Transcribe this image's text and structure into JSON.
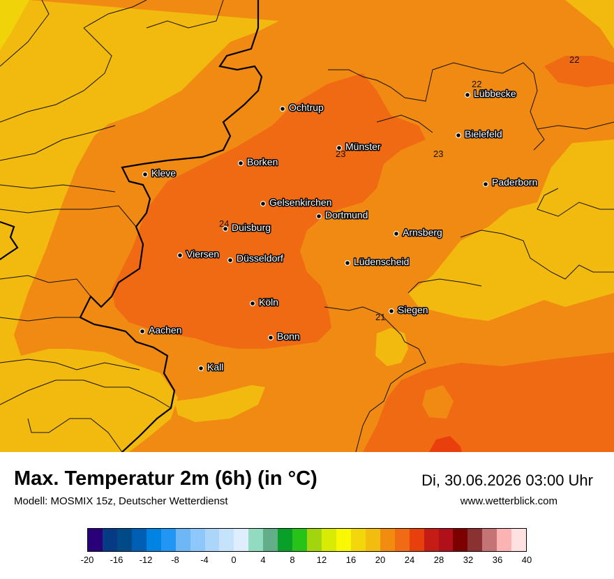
{
  "header": {
    "title": "Max. Temperatur 2m (6h) (in °C)",
    "model": "Modell: MOSMIX 15z, Deutscher Wetterdienst",
    "datetime": "Di, 30.06.2026 03:00 Uhr",
    "website": "www.wetterblick.com"
  },
  "map": {
    "colors": {
      "t16": "#f1d30a",
      "t18": "#f2ba0e",
      "t20": "#f18a13",
      "t22": "#f06a13",
      "t24": "#e93f0d"
    },
    "cities": [
      {
        "name": "Lübbecke"
      },
      {
        "name": "Ochtrup"
      },
      {
        "name": "Bielefeld"
      },
      {
        "name": "Münster"
      },
      {
        "name": "Borken"
      },
      {
        "name": "Kleve"
      },
      {
        "name": "Paderborn"
      },
      {
        "name": "Gelsenkirchen"
      },
      {
        "name": "Dortmund"
      },
      {
        "name": "Duisburg"
      },
      {
        "name": "Arnsberg"
      },
      {
        "name": "Viersen"
      },
      {
        "name": "Düsseldorf"
      },
      {
        "name": "Lüdenscheid"
      },
      {
        "name": "Köln"
      },
      {
        "name": "Siegen"
      },
      {
        "name": "Aachen"
      },
      {
        "name": "Bonn"
      },
      {
        "name": "Kall"
      }
    ],
    "isolines": [
      "22",
      "22",
      "23",
      "23",
      "24",
      "21"
    ]
  },
  "legend": {
    "colors": [
      "#2a0078",
      "#063a85",
      "#004a87",
      "#005fb4",
      "#0083e3",
      "#2196f5",
      "#6eb7f7",
      "#8ec7f9",
      "#abd6fa",
      "#c6e3fc",
      "#dfeefd",
      "#93dbc0",
      "#62ae89",
      "#09a029",
      "#28c318",
      "#a3d50e",
      "#d8eb04",
      "#f8f805",
      "#f2d70c",
      "#f2bd0e",
      "#f18c11",
      "#f06b14",
      "#e8400d",
      "#c51d15",
      "#b0101a",
      "#7c0000",
      "#8a3232",
      "#c47474",
      "#fcb3b3",
      "#fee1e1"
    ],
    "ticks": [
      "-20",
      "-16",
      "-12",
      "-8",
      "-4",
      "0",
      "4",
      "8",
      "12",
      "16",
      "20",
      "24",
      "28",
      "32",
      "36",
      "40"
    ]
  }
}
